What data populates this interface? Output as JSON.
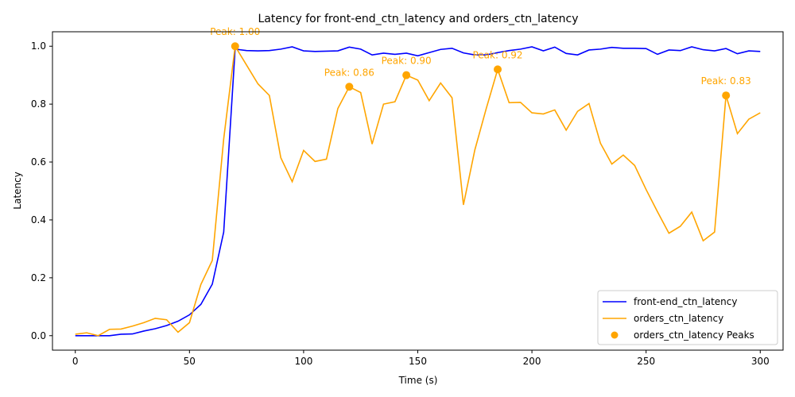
{
  "chart_data": {
    "type": "line",
    "title": "Latency for front-end_ctn_latency and orders_ctn_latency",
    "xlabel": "Time (s)",
    "ylabel": "Latency",
    "xlim": [
      -10,
      310
    ],
    "ylim": [
      -0.05,
      1.05
    ],
    "xticks": [
      0,
      50,
      100,
      150,
      200,
      250,
      300
    ],
    "yticks": [
      0.0,
      0.2,
      0.4,
      0.6,
      0.8,
      1.0
    ],
    "xtick_labels": [
      "0",
      "50",
      "100",
      "150",
      "200",
      "250",
      "300"
    ],
    "ytick_labels": [
      "0.0",
      "0.2",
      "0.4",
      "0.6",
      "0.8",
      "1.0"
    ],
    "grid": false,
    "legend_position": "lower-right",
    "x": [
      0,
      5,
      10,
      15,
      20,
      25,
      30,
      35,
      40,
      45,
      50,
      55,
      60,
      65,
      70,
      75,
      80,
      85,
      90,
      95,
      100,
      105,
      110,
      115,
      120,
      125,
      130,
      135,
      140,
      145,
      150,
      155,
      160,
      165,
      170,
      175,
      180,
      185,
      190,
      195,
      200,
      205,
      210,
      215,
      220,
      225,
      230,
      235,
      240,
      245,
      250,
      255,
      260,
      265,
      270,
      275,
      280,
      285,
      290,
      295,
      300
    ],
    "series": [
      {
        "name": "front-end_ctn_latency",
        "color": "#0000ff",
        "values": [
          0.0,
          0.0,
          0.0,
          0.0,
          0.005,
          0.006,
          0.016,
          0.024,
          0.035,
          0.05,
          0.072,
          0.108,
          0.178,
          0.358,
          0.99,
          0.985,
          0.984,
          0.985,
          0.99,
          0.998,
          0.984,
          0.982,
          0.983,
          0.984,
          0.997,
          0.99,
          0.97,
          0.976,
          0.972,
          0.976,
          0.967,
          0.978,
          0.989,
          0.993,
          0.977,
          0.97,
          0.97,
          0.978,
          0.985,
          0.99,
          0.998,
          0.984,
          0.997,
          0.975,
          0.97,
          0.987,
          0.99,
          0.996,
          0.993,
          0.993,
          0.992,
          0.972,
          0.987,
          0.985,
          0.998,
          0.988,
          0.984,
          0.992,
          0.974,
          0.984,
          0.982
        ]
      },
      {
        "name": "orders_ctn_latency",
        "color": "#ffa500",
        "values": [
          0.005,
          0.01,
          0.0,
          0.022,
          0.023,
          0.033,
          0.045,
          0.06,
          0.055,
          0.012,
          0.045,
          0.177,
          0.26,
          0.68,
          1.0,
          0.935,
          0.87,
          0.83,
          0.615,
          0.532,
          0.64,
          0.602,
          0.61,
          0.785,
          0.86,
          0.84,
          0.662,
          0.8,
          0.808,
          0.9,
          0.883,
          0.812,
          0.873,
          0.822,
          0.452,
          0.642,
          0.785,
          0.92,
          0.805,
          0.806,
          0.77,
          0.766,
          0.78,
          0.71,
          0.775,
          0.802,
          0.665,
          0.593,
          0.624,
          0.588,
          0.505,
          0.428,
          0.354,
          0.378,
          0.427,
          0.328,
          0.358,
          0.83,
          0.698,
          0.748,
          0.77
        ]
      }
    ],
    "peaks": {
      "name": "orders_ctn_latency Peaks",
      "color": "#ffa500",
      "points": [
        {
          "x": 70,
          "y": 1.0,
          "label": "Peak: 1.00"
        },
        {
          "x": 120,
          "y": 0.86,
          "label": "Peak: 0.86"
        },
        {
          "x": 145,
          "y": 0.9,
          "label": "Peak: 0.90"
        },
        {
          "x": 185,
          "y": 0.92,
          "label": "Peak: 0.92"
        },
        {
          "x": 285,
          "y": 0.83,
          "label": "Peak: 0.83"
        }
      ]
    }
  }
}
